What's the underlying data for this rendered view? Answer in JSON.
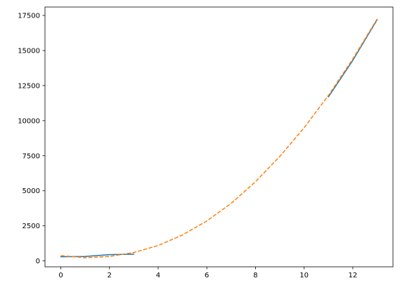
{
  "chart_data": {
    "type": "line",
    "title": "",
    "xlabel": "",
    "ylabel": "",
    "xlim": [
      -0.65,
      13.65
    ],
    "ylim": [
      -420,
      18100
    ],
    "xticks": [
      0,
      2,
      4,
      6,
      8,
      10,
      12
    ],
    "yticks": [
      0,
      2500,
      5000,
      7500,
      10000,
      12500,
      15000,
      17500
    ],
    "grid": false,
    "legend": "none",
    "series": [
      {
        "style": "solid",
        "color": "#1f77b4",
        "segments": [
          {
            "x": [
              0,
              1,
              2,
              3
            ],
            "y": [
              300,
              320,
              450,
              480
            ]
          },
          {
            "x": [
              11,
              12,
              13
            ],
            "y": [
              11700,
              14300,
              17200
            ]
          }
        ]
      },
      {
        "style": "dashed",
        "color": "#ff7f0e",
        "segments": [
          {
            "x": [
              0,
              1,
              2,
              3,
              4,
              5,
              6,
              7,
              8,
              9,
              10,
              11,
              12,
              13
            ],
            "y": [
              380,
              230,
              320,
              600,
              1100,
              1850,
              2850,
              4100,
              5650,
              7450,
              9500,
              11800,
              14400,
              17250
            ]
          }
        ]
      }
    ]
  }
}
